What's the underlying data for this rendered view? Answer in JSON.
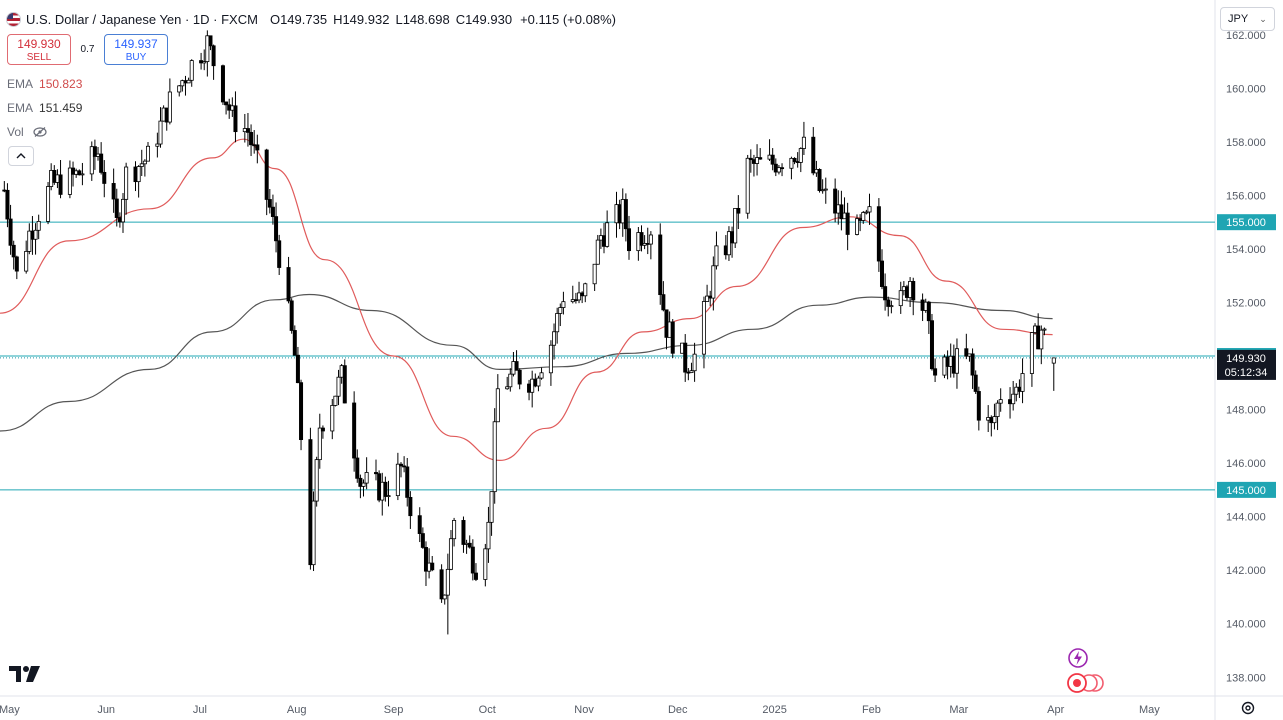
{
  "header": {
    "title": "U.S. Dollar / Japanese Yen · 1D · FXCM",
    "open_key": "O",
    "open": "149.735",
    "high_key": "H",
    "high": "149.932",
    "low_key": "L",
    "low": "148.698",
    "close_key": "C",
    "close": "149.930",
    "change": "+0.115 (+0.08%)"
  },
  "trade": {
    "sell_price": "149.930",
    "sell_label": "SELL",
    "spread": "0.7",
    "buy_price": "149.937",
    "buy_label": "BUY"
  },
  "indicators": [
    {
      "name": "EMA",
      "value": "150.823",
      "color": "#d04a4a"
    },
    {
      "name": "EMA",
      "value": "151.459",
      "color": "#555555"
    },
    {
      "name": "Vol",
      "value": ""
    }
  ],
  "currency_selector": {
    "label": "JPY"
  },
  "icons": {
    "flag": "us-flag-icon",
    "eye": "eye-off-icon",
    "collapse": "chevron-up-icon",
    "logo": "tradingview-logo",
    "settings": "settings-icon",
    "bolt": "lightning-icon",
    "record": "record-icon"
  },
  "colors": {
    "up": "#ffffff",
    "down": "#000000",
    "ema_fast": "#e05b5b",
    "ema_slow": "#555555",
    "level_line": "#22a8b4",
    "price_tag": "#131722"
  },
  "chart_data": {
    "type": "candlestick",
    "y_ticks": [
      "162.000",
      "160.000",
      "158.000",
      "156.000",
      "154.000",
      "152.000",
      "150.000",
      "148.000",
      "146.000",
      "144.000",
      "142.000",
      "140.000",
      "138.000"
    ],
    "ylim": [
      137.3,
      163.3
    ],
    "x_ticks": [
      {
        "label": "May",
        "date": "2024-05-01"
      },
      {
        "label": "Jun",
        "date": "2024-06-01"
      },
      {
        "label": "Jul",
        "date": "2024-07-01"
      },
      {
        "label": "Aug",
        "date": "2024-08-01"
      },
      {
        "label": "Sep",
        "date": "2024-09-01"
      },
      {
        "label": "Oct",
        "date": "2024-10-01"
      },
      {
        "label": "Nov",
        "date": "2024-11-01"
      },
      {
        "label": "Dec",
        "date": "2024-12-01"
      },
      {
        "label": "2025",
        "date": "2025-01-01"
      },
      {
        "label": "Feb",
        "date": "2025-02-01"
      },
      {
        "label": "Mar",
        "date": "2025-03-01"
      },
      {
        "label": "Apr",
        "date": "2025-04-01"
      },
      {
        "label": "May",
        "date": "2025-05-01"
      }
    ],
    "x_range": [
      "2024-04-28",
      "2025-05-22"
    ],
    "horizontal_levels": [
      {
        "value": 155.0,
        "label": "155.000"
      },
      {
        "value": 150.0,
        "label": "150.000"
      },
      {
        "value": 145.0,
        "label": "145.000"
      }
    ],
    "last_price": {
      "value": 149.93,
      "label": "149.930",
      "countdown": "05:12:34"
    },
    "close_anchors": [
      [
        "2024-04-29",
        156.2
      ],
      [
        "2024-05-03",
        153.0
      ],
      [
        "2024-05-07",
        154.6
      ],
      [
        "2024-05-14",
        156.4
      ],
      [
        "2024-05-20",
        156.6
      ],
      [
        "2024-05-24",
        156.9
      ],
      [
        "2024-05-29",
        157.6
      ],
      [
        "2024-06-04",
        154.9
      ],
      [
        "2024-06-07",
        156.8
      ],
      [
        "2024-06-14",
        157.4
      ],
      [
        "2024-06-21",
        159.5
      ],
      [
        "2024-06-28",
        160.9
      ],
      [
        "2024-07-03",
        161.7
      ],
      [
        "2024-07-11",
        158.9
      ],
      [
        "2024-07-16",
        158.4
      ],
      [
        "2024-07-23",
        155.5
      ],
      [
        "2024-07-26",
        153.8
      ],
      [
        "2024-07-31",
        150.0
      ],
      [
        "2024-08-05",
        142.5
      ],
      [
        "2024-08-08",
        147.4
      ],
      [
        "2024-08-15",
        149.2
      ],
      [
        "2024-08-21",
        145.3
      ],
      [
        "2024-08-29",
        145.0
      ],
      [
        "2024-09-03",
        145.8
      ],
      [
        "2024-09-09",
        143.1
      ],
      [
        "2024-09-16",
        140.5
      ],
      [
        "2024-09-20",
        143.9
      ],
      [
        "2024-09-27",
        142.2
      ],
      [
        "2024-10-01",
        143.6
      ],
      [
        "2024-10-04",
        148.7
      ],
      [
        "2024-10-09",
        149.3
      ],
      [
        "2024-10-15",
        149.1
      ],
      [
        "2024-10-21",
        150.5
      ],
      [
        "2024-10-25",
        152.3
      ],
      [
        "2024-10-31",
        152.0
      ],
      [
        "2024-11-06",
        154.5
      ],
      [
        "2024-11-13",
        155.4
      ],
      [
        "2024-11-15",
        154.3
      ],
      [
        "2024-11-22",
        154.8
      ],
      [
        "2024-11-27",
        151.1
      ],
      [
        "2024-12-03",
        149.7
      ],
      [
        "2024-12-06",
        150.0
      ],
      [
        "2024-12-13",
        153.6
      ],
      [
        "2024-12-18",
        154.5
      ],
      [
        "2024-12-23",
        157.1
      ],
      [
        "2024-12-31",
        157.2
      ],
      [
        "2025-01-10",
        157.8
      ],
      [
        "2025-01-15",
        156.2
      ],
      [
        "2025-01-20",
        155.5
      ],
      [
        "2025-01-27",
        154.6
      ],
      [
        "2025-01-31",
        155.2
      ],
      [
        "2025-02-05",
        152.5
      ],
      [
        "2025-02-10",
        152.0
      ],
      [
        "2025-02-13",
        152.9
      ],
      [
        "2025-02-18",
        151.6
      ],
      [
        "2025-02-21",
        149.2
      ],
      [
        "2025-02-27",
        149.8
      ],
      [
        "2025-03-04",
        149.8
      ],
      [
        "2025-03-07",
        148.0
      ],
      [
        "2025-03-11",
        147.3
      ],
      [
        "2025-03-14",
        148.6
      ],
      [
        "2025-03-19",
        148.7
      ],
      [
        "2025-03-24",
        150.4
      ],
      [
        "2025-03-27",
        151.0
      ],
      [
        "2025-03-31",
        149.9
      ]
    ],
    "notable_extremes": {
      "high": 161.9,
      "low": 139.6
    },
    "ema_fast": {
      "label": "EMA",
      "value": 150.823,
      "points": [
        [
          "2024-04-28",
          151.6
        ],
        [
          "2024-05-20",
          154.3
        ],
        [
          "2024-06-15",
          155.5
        ],
        [
          "2024-07-05",
          157.4
        ],
        [
          "2024-07-15",
          158.1
        ],
        [
          "2024-07-25",
          157.0
        ],
        [
          "2024-08-10",
          153.6
        ],
        [
          "2024-09-01",
          150.0
        ],
        [
          "2024-09-20",
          147.0
        ],
        [
          "2024-10-05",
          146.1
        ],
        [
          "2024-10-20",
          147.3
        ],
        [
          "2024-11-05",
          149.4
        ],
        [
          "2024-11-20",
          150.9
        ],
        [
          "2024-12-05",
          151.4
        ],
        [
          "2024-12-20",
          152.6
        ],
        [
          "2025-01-10",
          154.8
        ],
        [
          "2025-01-25",
          155.2
        ],
        [
          "2025-02-10",
          154.5
        ],
        [
          "2025-02-25",
          152.8
        ],
        [
          "2025-03-15",
          151.0
        ],
        [
          "2025-03-31",
          150.8
        ]
      ]
    },
    "ema_slow": {
      "label": "EMA",
      "value": 151.459,
      "points": [
        [
          "2024-04-28",
          147.2
        ],
        [
          "2024-05-20",
          148.3
        ],
        [
          "2024-06-15",
          149.5
        ],
        [
          "2024-07-05",
          150.9
        ],
        [
          "2024-07-25",
          152.1
        ],
        [
          "2024-08-05",
          152.3
        ],
        [
          "2024-08-25",
          151.7
        ],
        [
          "2024-09-20",
          150.4
        ],
        [
          "2024-10-05",
          149.5
        ],
        [
          "2024-10-25",
          149.6
        ],
        [
          "2024-11-15",
          150.1
        ],
        [
          "2024-12-05",
          150.4
        ],
        [
          "2024-12-25",
          151.0
        ],
        [
          "2025-01-15",
          151.9
        ],
        [
          "2025-02-01",
          152.2
        ],
        [
          "2025-02-20",
          152.0
        ],
        [
          "2025-03-15",
          151.7
        ],
        [
          "2025-03-31",
          151.4
        ]
      ]
    }
  }
}
